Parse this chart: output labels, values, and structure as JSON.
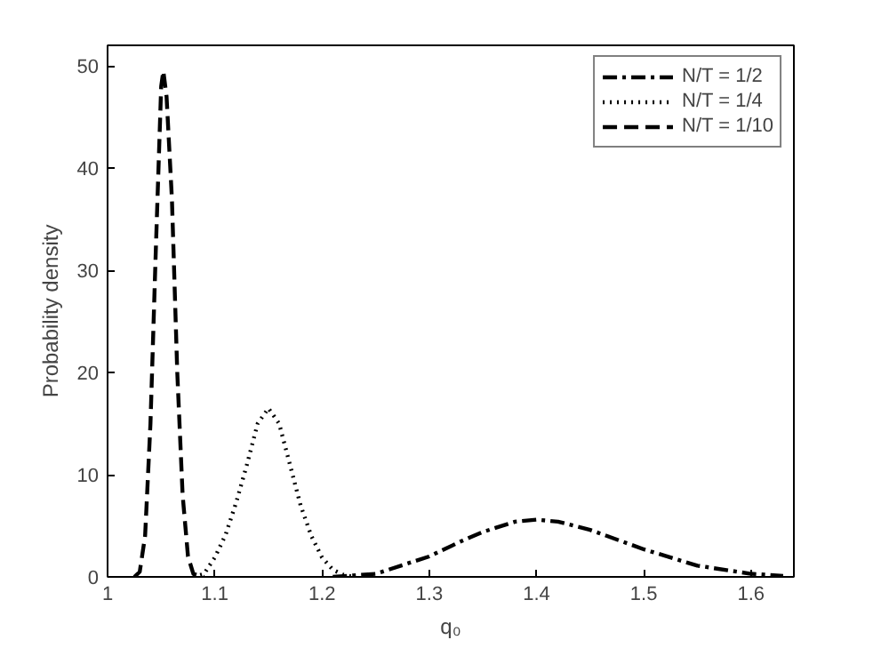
{
  "chart_data": {
    "type": "line",
    "xlabel": "q₀",
    "ylabel": "Probability density",
    "xlim": [
      1,
      1.64
    ],
    "ylim": [
      0,
      52
    ],
    "xticks": [
      1,
      1.1,
      1.2,
      1.3,
      1.4,
      1.5,
      1.6
    ],
    "yticks": [
      0,
      10,
      20,
      30,
      40,
      50
    ],
    "grid": false,
    "legend": "top right",
    "series": [
      {
        "name": "N/T = 1/2",
        "color": "#000000",
        "line_style": "dashdot",
        "x": [
          1.21,
          1.25,
          1.3,
          1.33,
          1.35,
          1.38,
          1.4,
          1.42,
          1.45,
          1.5,
          1.55,
          1.6,
          1.63
        ],
        "values": [
          0,
          0.3,
          2.0,
          3.5,
          4.4,
          5.4,
          5.6,
          5.4,
          4.6,
          2.7,
          1.1,
          0.3,
          0.1
        ]
      },
      {
        "name": "N/T = 1/4",
        "color": "#000000",
        "line_style": "dotted",
        "x": [
          1.08,
          1.09,
          1.1,
          1.11,
          1.12,
          1.13,
          1.14,
          1.15,
          1.16,
          1.17,
          1.18,
          1.19,
          1.2,
          1.21,
          1.22,
          1.23
        ],
        "values": [
          0,
          0.3,
          1.9,
          4.1,
          7.3,
          11,
          15,
          16.5,
          15,
          11,
          7,
          4,
          1.9,
          0.7,
          0.2,
          0
        ]
      },
      {
        "name": "N/T = 1/10",
        "color": "#000000",
        "line_style": "dashed",
        "x": [
          1.025,
          1.03,
          1.035,
          1.04,
          1.045,
          1.05,
          1.052,
          1.055,
          1.06,
          1.065,
          1.07,
          1.075,
          1.08,
          1.09
        ],
        "values": [
          0,
          0.5,
          4,
          15,
          32,
          48,
          49.5,
          47,
          37,
          20,
          8,
          2,
          0.3,
          0
        ]
      }
    ]
  }
}
